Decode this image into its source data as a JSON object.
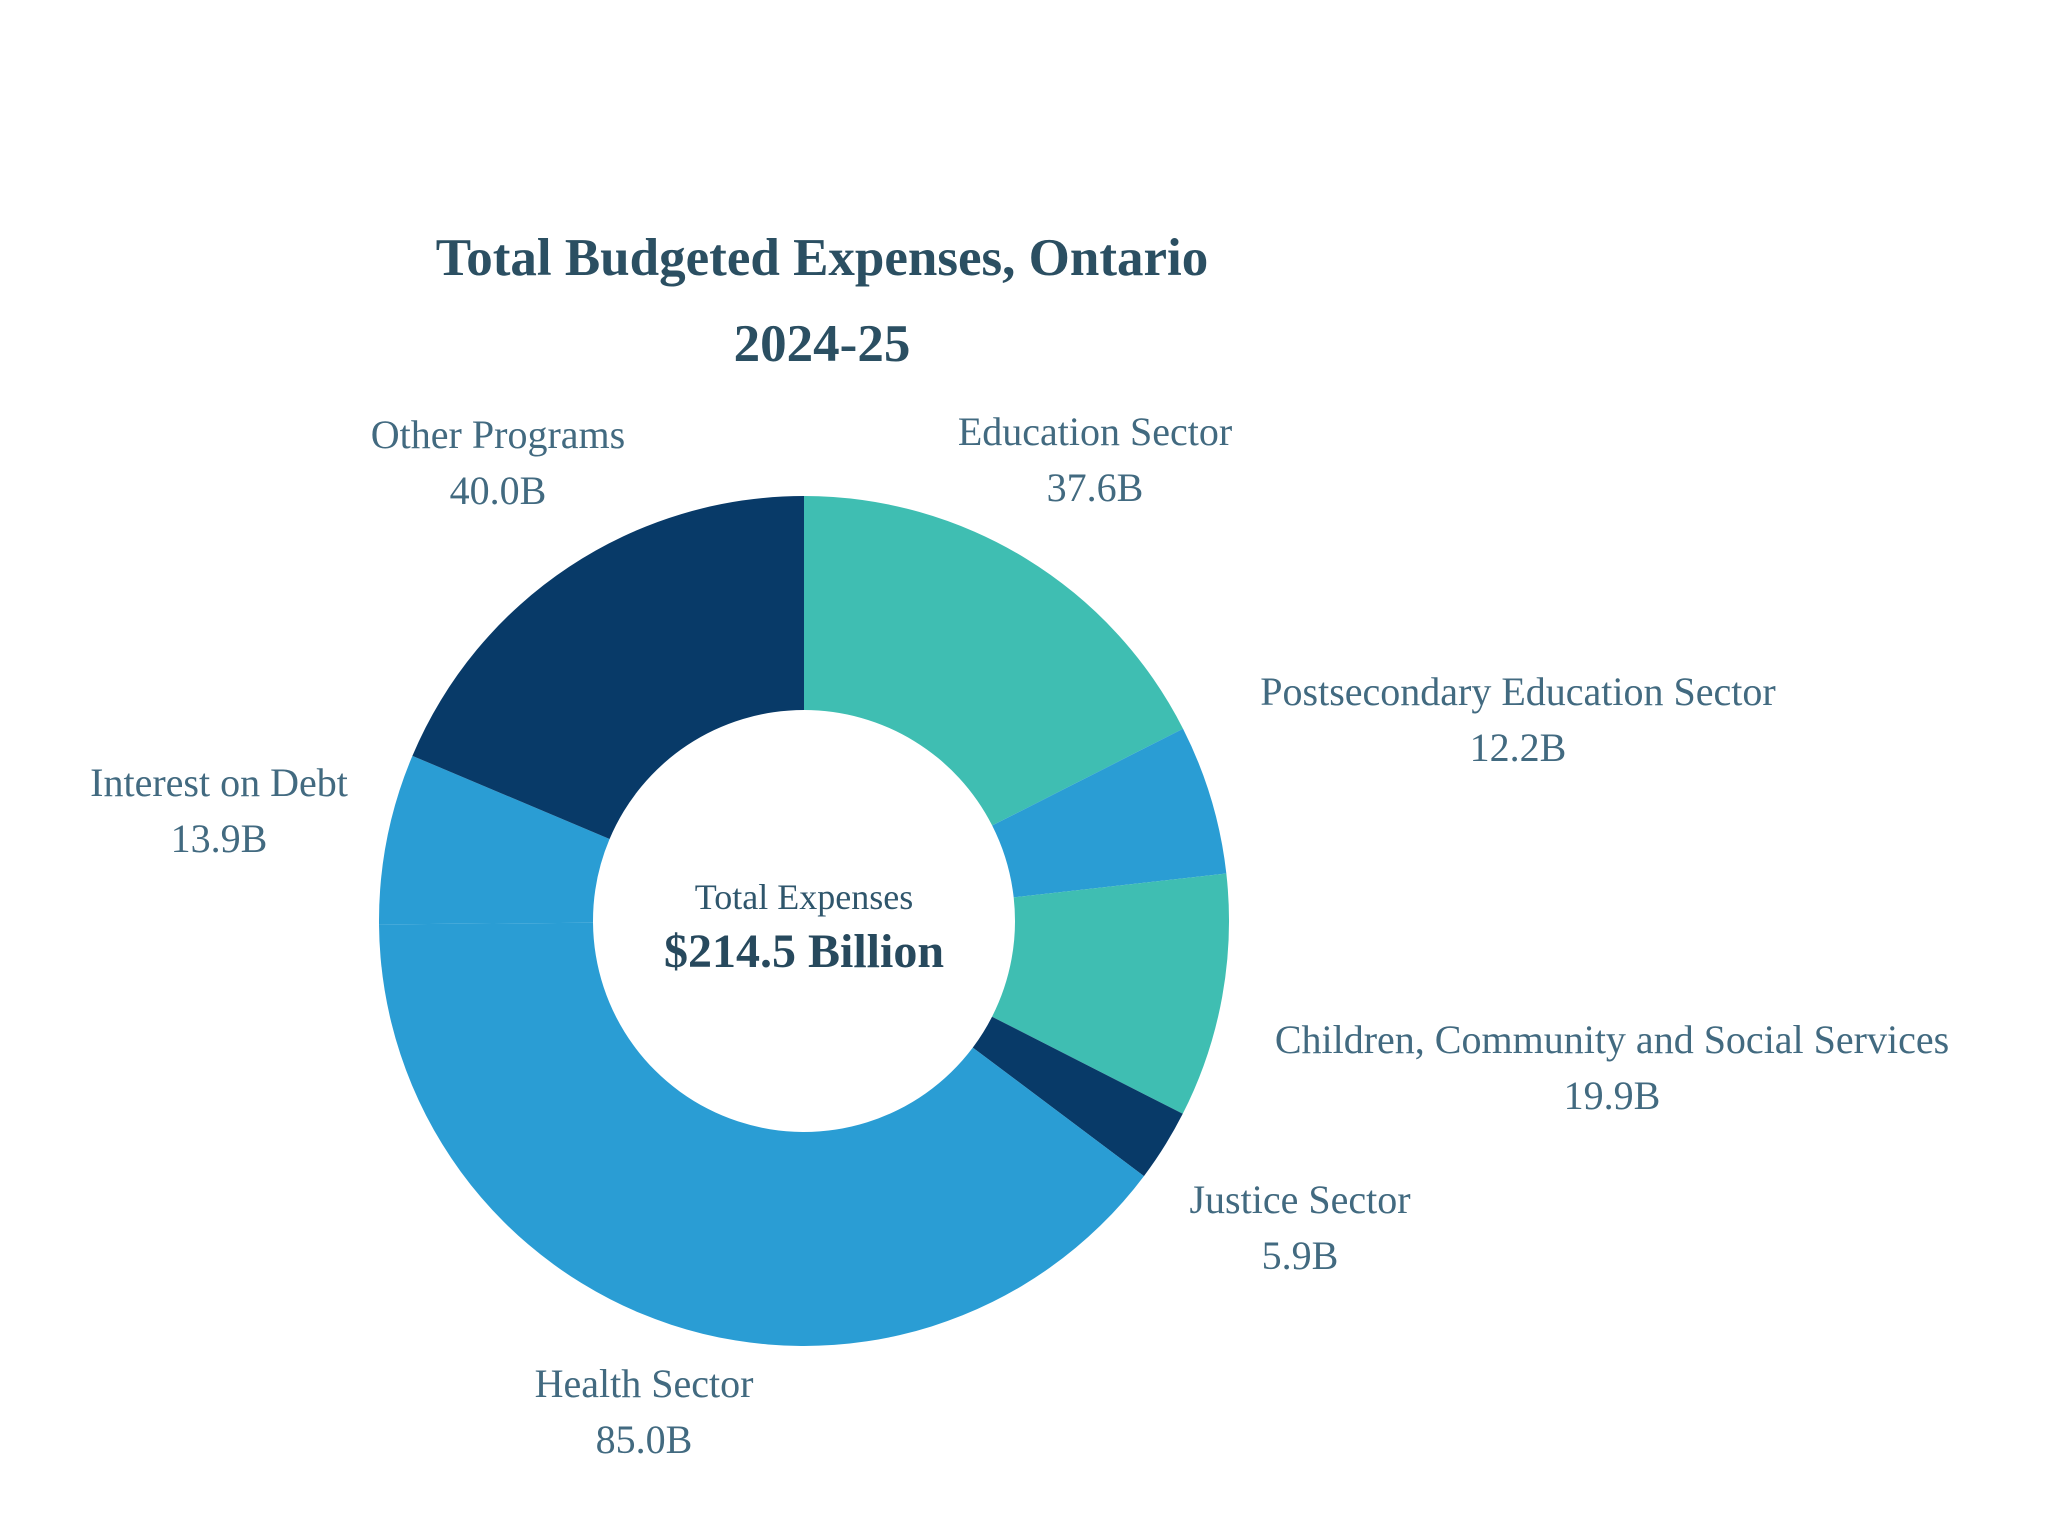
{
  "title": {
    "line1": "Total Budgeted Expenses, Ontario",
    "line2": "2024-25"
  },
  "center": {
    "label": "Total Expenses",
    "value": "$214.5 Billion"
  },
  "colors": {
    "teal": "#3fbeb2",
    "blue": "#2a9dd4",
    "navy": "#083a68",
    "title_text": "#2b4f62",
    "label_text": "#426a80",
    "background": "#ffffff"
  },
  "chart_data": {
    "type": "pie",
    "subtype": "donut",
    "title": "Total Budgeted Expenses, Ontario 2024-25",
    "center_label": "Total Expenses",
    "center_value": "$214.5 Billion",
    "total": 214.5,
    "units": "billions of dollars",
    "start_angle_deg": 0,
    "direction": "clockwise",
    "legend_position": "outside-labels",
    "segments": [
      {
        "label": "Education Sector",
        "value": 37.6,
        "display": "37.6B",
        "color": "#3fbeb2"
      },
      {
        "label": "Postsecondary Education Sector",
        "value": 12.2,
        "display": "12.2B",
        "color": "#2a9dd4"
      },
      {
        "label": "Children, Community and Social Services",
        "value": 19.9,
        "display": "19.9B",
        "color": "#3fbeb2"
      },
      {
        "label": "Justice Sector",
        "value": 5.9,
        "display": "5.9B",
        "color": "#083a68"
      },
      {
        "label": "Health Sector",
        "value": 85.0,
        "display": "85.0B",
        "color": "#2a9dd4"
      },
      {
        "label": "Interest on Debt",
        "value": 13.9,
        "display": "13.9B",
        "color": "#2a9dd4"
      },
      {
        "label": "Other Programs",
        "value": 40.0,
        "display": "40.0B",
        "color": "#083a68"
      }
    ]
  }
}
